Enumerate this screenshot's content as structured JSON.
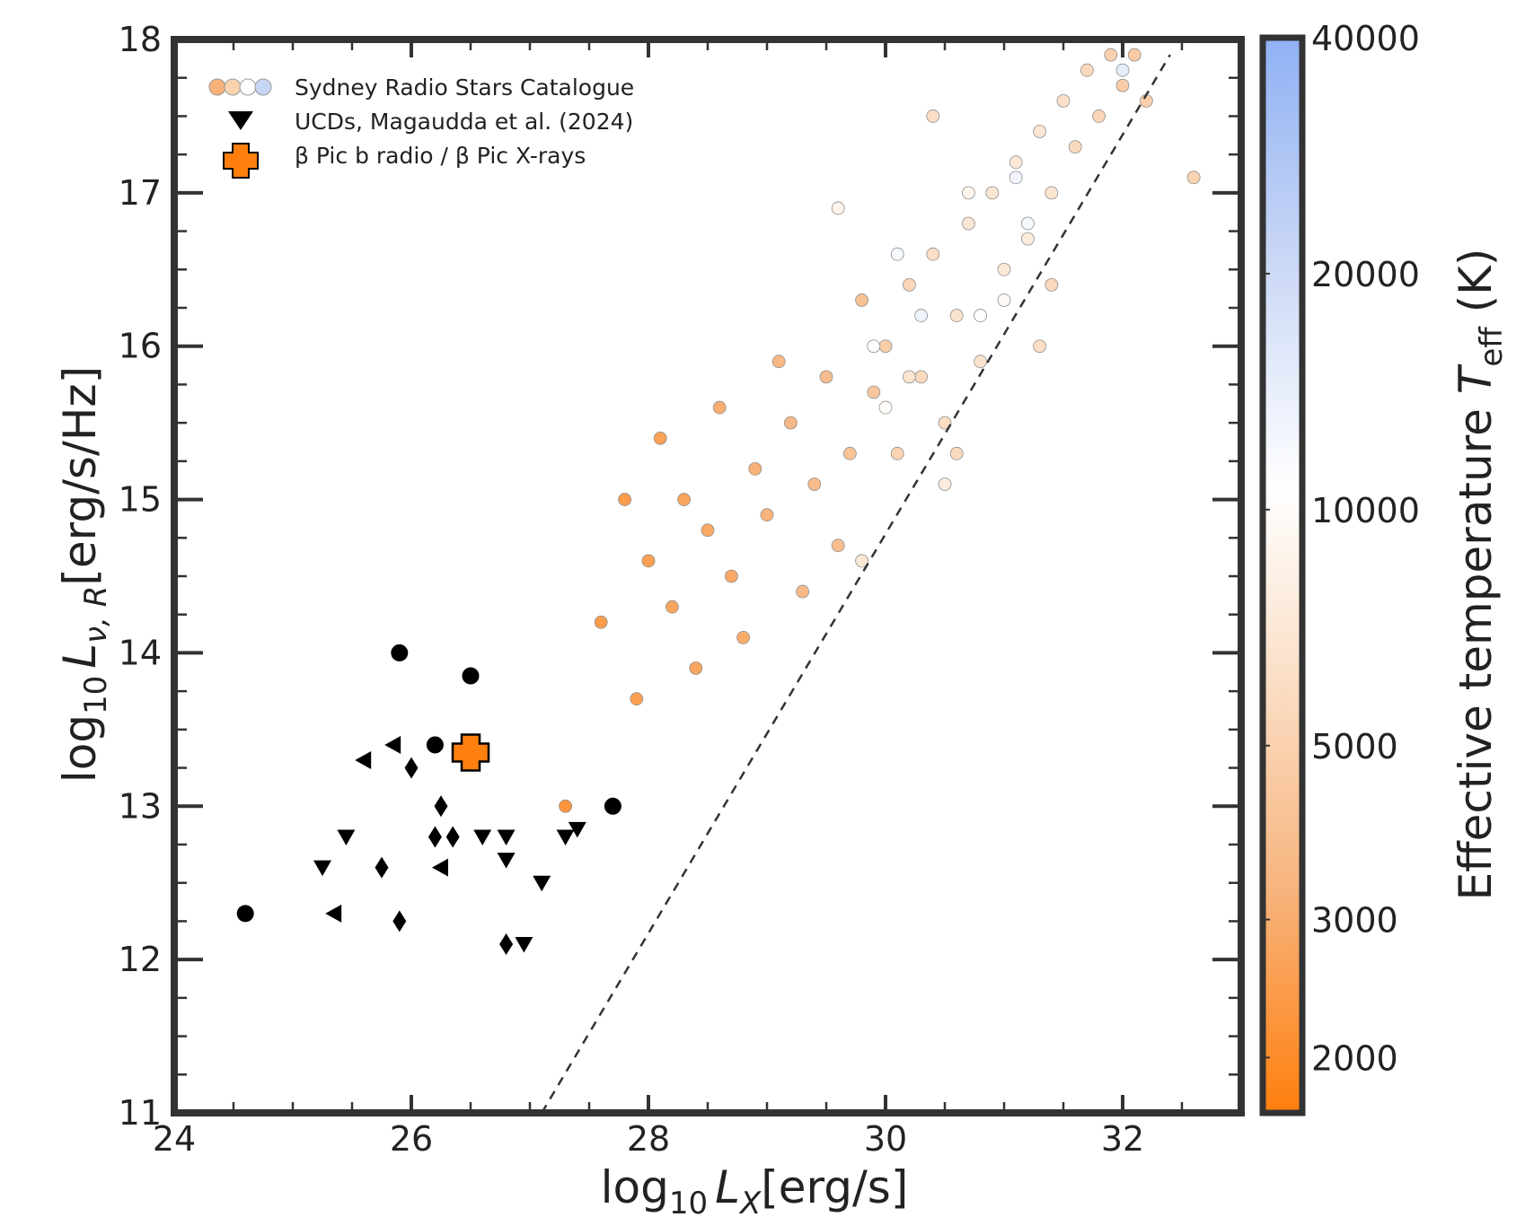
{
  "chart_data": {
    "type": "scatter",
    "xlabel": {
      "prefix": "log",
      "sub": "10",
      "var": "L",
      "varsub": "X",
      "suffix": "[erg/s]"
    },
    "ylabel": {
      "prefix": "log",
      "sub": "10",
      "var": "L",
      "varsub": "ν, R",
      "suffix": "[erg/s/Hz]"
    },
    "xlim": [
      24,
      33
    ],
    "ylim": [
      11,
      18
    ],
    "xticks": [
      24,
      26,
      28,
      30,
      32
    ],
    "yticks": [
      11,
      12,
      13,
      14,
      15,
      16,
      17,
      18
    ],
    "grid": false,
    "legend_placement": "top-left",
    "legend": [
      {
        "label": "Sydney Radio Stars Catalogue",
        "marker": "circles"
      },
      {
        "label": "UCDs, Magaudda et al. (2024)",
        "marker": "triangle-down"
      },
      {
        "label": "β Pic b radio / β Pic X-rays",
        "marker": "plus"
      }
    ],
    "colorbar": {
      "label_prefix": "Effective temperature ",
      "label_var": "T",
      "label_sub": "eff",
      "label_suffix": " (K)",
      "ticks": [
        "40000",
        "20000",
        "10000",
        "5000",
        "3000",
        "2000"
      ],
      "tick_values": [
        40000,
        20000,
        10000,
        5000,
        3000,
        2000
      ],
      "range": [
        1700,
        40000
      ],
      "scale": "log",
      "colors": [
        "#ff7f0e",
        "#f7b27a",
        "#fbe2cc",
        "#ffffff",
        "#c8d6f5",
        "#8fb1f4"
      ]
    },
    "reference_line": {
      "style": "dashed",
      "points": [
        [
          27.1,
          11.0
        ],
        [
          32.4,
          17.9
        ]
      ]
    },
    "series": [
      {
        "name": "Sydney Radio Stars Catalogue",
        "marker": "circle",
        "points": [
          [
            27.3,
            13.0,
            2100
          ],
          [
            27.8,
            15.0,
            2300
          ],
          [
            27.6,
            14.2,
            2300
          ],
          [
            27.9,
            13.7,
            2400
          ],
          [
            28.1,
            15.4,
            2500
          ],
          [
            28.0,
            14.6,
            2400
          ],
          [
            28.3,
            15.0,
            2600
          ],
          [
            28.5,
            14.8,
            2700
          ],
          [
            28.2,
            14.3,
            2600
          ],
          [
            28.4,
            13.9,
            2600
          ],
          [
            28.7,
            14.5,
            2700
          ],
          [
            28.9,
            15.2,
            3000
          ],
          [
            28.6,
            15.6,
            2900
          ],
          [
            28.8,
            14.1,
            2800
          ],
          [
            29.0,
            14.9,
            3100
          ],
          [
            29.2,
            15.5,
            3300
          ],
          [
            29.1,
            15.9,
            3400
          ],
          [
            29.4,
            15.1,
            3500
          ],
          [
            29.3,
            14.4,
            3400
          ],
          [
            29.6,
            14.7,
            3600
          ],
          [
            29.5,
            15.8,
            3600
          ],
          [
            29.7,
            15.3,
            3900
          ],
          [
            29.8,
            16.3,
            3800
          ],
          [
            29.9,
            15.7,
            4100
          ],
          [
            30.0,
            16.0,
            4600
          ],
          [
            30.1,
            15.3,
            5000
          ],
          [
            30.2,
            16.4,
            5200
          ],
          [
            30.3,
            15.8,
            5600
          ],
          [
            30.4,
            16.6,
            6000
          ],
          [
            30.5,
            15.5,
            5800
          ],
          [
            30.6,
            16.2,
            6500
          ],
          [
            30.7,
            16.8,
            6700
          ],
          [
            30.8,
            15.9,
            6400
          ],
          [
            30.9,
            17.0,
            6800
          ],
          [
            31.0,
            16.5,
            7200
          ],
          [
            31.1,
            17.2,
            7000
          ],
          [
            31.2,
            16.7,
            7400
          ],
          [
            31.3,
            17.4,
            6800
          ],
          [
            31.4,
            17.0,
            6600
          ],
          [
            31.5,
            17.6,
            6200
          ],
          [
            31.6,
            17.3,
            5600
          ],
          [
            31.7,
            17.8,
            5400
          ],
          [
            31.8,
            17.5,
            5200
          ],
          [
            31.9,
            17.9,
            4800
          ],
          [
            32.0,
            17.7,
            4600
          ],
          [
            32.1,
            17.9,
            4400
          ],
          [
            32.2,
            17.6,
            4700
          ],
          [
            32.6,
            17.1,
            5000
          ],
          [
            30.1,
            16.6,
            12000
          ],
          [
            30.5,
            15.1,
            7500
          ],
          [
            29.9,
            16.0,
            11000
          ],
          [
            30.0,
            15.6,
            10000
          ],
          [
            31.2,
            16.8,
            12000
          ],
          [
            30.7,
            17.0,
            9000
          ],
          [
            29.6,
            16.9,
            8500
          ],
          [
            31.0,
            16.3,
            9500
          ],
          [
            30.3,
            16.2,
            13000
          ],
          [
            32.0,
            17.8,
            15000
          ],
          [
            30.8,
            16.2,
            11000
          ],
          [
            31.1,
            17.1,
            12500
          ],
          [
            30.2,
            15.8,
            6500
          ],
          [
            29.8,
            14.6,
            7000
          ],
          [
            30.4,
            17.5,
            6000
          ],
          [
            31.4,
            16.4,
            5500
          ],
          [
            30.6,
            15.3,
            5600
          ],
          [
            31.3,
            16.0,
            6000
          ]
        ]
      },
      {
        "name": "UCDs, Magaudda et al. (2024)",
        "marker": "mixed",
        "points": [
          [
            24.6,
            12.3,
            "circle"
          ],
          [
            25.9,
            14.0,
            "circle"
          ],
          [
            26.5,
            13.85,
            "circle"
          ],
          [
            26.2,
            13.4,
            "circle"
          ],
          [
            27.7,
            13.0,
            "circle"
          ],
          [
            25.25,
            12.6,
            "triangle-down"
          ],
          [
            25.45,
            12.8,
            "triangle-down"
          ],
          [
            26.6,
            12.8,
            "triangle-down"
          ],
          [
            26.8,
            12.8,
            "triangle-down"
          ],
          [
            26.8,
            12.65,
            "triangle-down"
          ],
          [
            27.1,
            12.5,
            "triangle-down"
          ],
          [
            27.3,
            12.8,
            "triangle-down"
          ],
          [
            27.4,
            12.85,
            "triangle-down"
          ],
          [
            26.95,
            12.1,
            "triangle-down"
          ],
          [
            25.75,
            12.6,
            "diamond"
          ],
          [
            26.0,
            13.25,
            "diamond"
          ],
          [
            26.25,
            13.0,
            "diamond"
          ],
          [
            26.2,
            12.8,
            "diamond"
          ],
          [
            26.35,
            12.8,
            "diamond"
          ],
          [
            25.9,
            12.25,
            "diamond"
          ],
          [
            26.8,
            12.1,
            "diamond"
          ],
          [
            25.6,
            13.3,
            "triangle-left"
          ],
          [
            25.85,
            13.4,
            "triangle-left"
          ],
          [
            26.25,
            12.6,
            "triangle-left"
          ],
          [
            25.35,
            12.3,
            "triangle-left"
          ]
        ]
      },
      {
        "name": "β Pic b radio / β Pic X-rays",
        "marker": "plus",
        "points": [
          [
            26.5,
            13.35
          ]
        ]
      }
    ]
  }
}
